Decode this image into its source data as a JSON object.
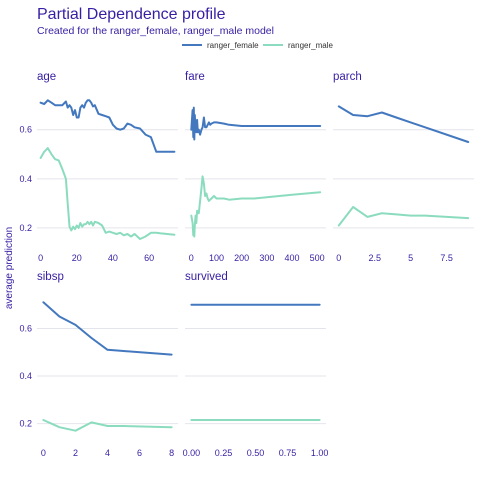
{
  "chart_data": {
    "type": "line",
    "title": "Partial Dependence profile",
    "subtitle": "Created for the ranger_female, ranger_male model",
    "ylabel": "average prediction",
    "ylim": [
      0.11,
      0.77
    ],
    "yticks": [
      0.2,
      0.4,
      0.6
    ],
    "legend": {
      "position": "top-right",
      "series": [
        {
          "name": "ranger_female",
          "color": "#4378bf"
        },
        {
          "name": "ranger_male",
          "color": "#8bdcbe"
        }
      ]
    },
    "panels": [
      {
        "label": "age",
        "xlim": [
          -2,
          76
        ],
        "xticks": [
          0,
          20,
          40,
          60
        ],
        "series": [
          {
            "name": "ranger_female",
            "x": [
              0,
              2,
              4,
              6,
              8,
              10,
              12,
              14,
              15,
              16,
              17,
              18,
              19,
              20,
              21,
              22,
              23,
              24,
              25,
              26,
              27,
              28,
              29,
              30,
              32,
              34,
              36,
              38,
              40,
              42,
              44,
              46,
              48,
              50,
              52,
              55,
              58,
              61,
              64,
              66,
              70,
              74
            ],
            "y": [
              0.71,
              0.705,
              0.72,
              0.71,
              0.7,
              0.7,
              0.7,
              0.715,
              0.69,
              0.7,
              0.69,
              0.66,
              0.68,
              0.65,
              0.65,
              0.69,
              0.7,
              0.69,
              0.71,
              0.72,
              0.72,
              0.71,
              0.695,
              0.7,
              0.665,
              0.66,
              0.655,
              0.65,
              0.62,
              0.605,
              0.6,
              0.605,
              0.625,
              0.62,
              0.61,
              0.605,
              0.58,
              0.57,
              0.51,
              0.51,
              0.51,
              0.51
            ]
          },
          {
            "name": "ranger_male",
            "x": [
              0,
              2,
              4,
              6,
              8,
              10,
              12,
              14,
              15,
              16,
              17,
              18,
              19,
              20,
              21,
              22,
              23,
              24,
              25,
              26,
              27,
              28,
              29,
              30,
              32,
              34,
              36,
              38,
              40,
              42,
              44,
              46,
              48,
              50,
              52,
              55,
              58,
              61,
              64,
              66,
              70,
              74
            ],
            "y": [
              0.485,
              0.51,
              0.525,
              0.5,
              0.48,
              0.475,
              0.44,
              0.4,
              0.3,
              0.205,
              0.19,
              0.205,
              0.195,
              0.21,
              0.2,
              0.22,
              0.205,
              0.215,
              0.215,
              0.225,
              0.215,
              0.225,
              0.21,
              0.225,
              0.22,
              0.21,
              0.18,
              0.185,
              0.18,
              0.175,
              0.18,
              0.17,
              0.175,
              0.165,
              0.175,
              0.155,
              0.165,
              0.18,
              0.18,
              0.178,
              0.175,
              0.172
            ]
          }
        ]
      },
      {
        "label": "fare",
        "xlim": [
          -25,
          535
        ],
        "xticks": [
          0,
          100,
          200,
          300,
          400,
          500
        ],
        "series": [
          {
            "name": "ranger_female",
            "x": [
              0,
              5,
              8,
              10,
              12,
              14,
              17,
              20,
              23,
              26,
              30,
              35,
              40,
              45,
              50,
              55,
              60,
              65,
              70,
              75,
              80,
              90,
              100,
              130,
              150,
              200,
              250,
              300,
              400,
              512
            ],
            "y": [
              0.6,
              0.68,
              0.57,
              0.69,
              0.56,
              0.66,
              0.6,
              0.59,
              0.64,
              0.59,
              0.6,
              0.58,
              0.6,
              0.61,
              0.65,
              0.61,
              0.61,
              0.62,
              0.63,
              0.62,
              0.625,
              0.63,
              0.63,
              0.625,
              0.62,
              0.615,
              0.615,
              0.615,
              0.615,
              0.615
            ]
          },
          {
            "name": "ranger_male",
            "x": [
              0,
              5,
              8,
              10,
              12,
              14,
              17,
              20,
              23,
              26,
              30,
              35,
              40,
              45,
              50,
              55,
              60,
              65,
              70,
              75,
              80,
              90,
              100,
              130,
              150,
              200,
              250,
              300,
              400,
              512
            ],
            "y": [
              0.25,
              0.22,
              0.17,
              0.2,
              0.165,
              0.21,
              0.25,
              0.22,
              0.27,
              0.26,
              0.26,
              0.31,
              0.36,
              0.41,
              0.38,
              0.33,
              0.34,
              0.32,
              0.31,
              0.315,
              0.32,
              0.33,
              0.32,
              0.32,
              0.315,
              0.32,
              0.32,
              0.325,
              0.335,
              0.345
            ]
          }
        ]
      },
      {
        "label": "parch",
        "xlim": [
          -0.4,
          9.4
        ],
        "xticks": [
          0.0,
          2.5,
          5.0,
          7.5
        ],
        "series": [
          {
            "name": "ranger_female",
            "x": [
              0,
              1,
              2,
              3,
              4,
              5,
              6,
              9
            ],
            "y": [
              0.695,
              0.66,
              0.655,
              0.67,
              0.65,
              0.63,
              0.61,
              0.55
            ]
          },
          {
            "name": "ranger_male",
            "x": [
              0,
              1,
              2,
              3,
              4,
              5,
              6,
              9
            ],
            "y": [
              0.21,
              0.285,
              0.245,
              0.26,
              0.255,
              0.25,
              0.25,
              0.24
            ]
          }
        ]
      },
      {
        "label": "sibsp",
        "xlim": [
          -0.4,
          8.4
        ],
        "xticks": [
          0,
          2,
          4,
          6,
          8
        ],
        "series": [
          {
            "name": "ranger_female",
            "x": [
              0,
              1,
              2,
              3,
              4,
              5,
              8
            ],
            "y": [
              0.71,
              0.65,
              0.615,
              0.56,
              0.51,
              0.505,
              0.49
            ]
          },
          {
            "name": "ranger_male",
            "x": [
              0,
              1,
              2,
              3,
              4,
              5,
              8
            ],
            "y": [
              0.215,
              0.185,
              0.17,
              0.205,
              0.19,
              0.19,
              0.185
            ]
          }
        ]
      },
      {
        "label": "survived",
        "xlim": [
          -0.05,
          1.05
        ],
        "xticks": [
          0.0,
          0.25,
          0.5,
          0.75,
          1.0
        ],
        "xticklabels": [
          "0.00",
          "0.25",
          "0.50",
          "0.75",
          "1.00"
        ],
        "series": [
          {
            "name": "ranger_female",
            "x": [
              0,
              1
            ],
            "y": [
              0.7,
              0.7
            ]
          },
          {
            "name": "ranger_male",
            "x": [
              0,
              1
            ],
            "y": [
              0.215,
              0.215
            ]
          }
        ]
      }
    ]
  }
}
